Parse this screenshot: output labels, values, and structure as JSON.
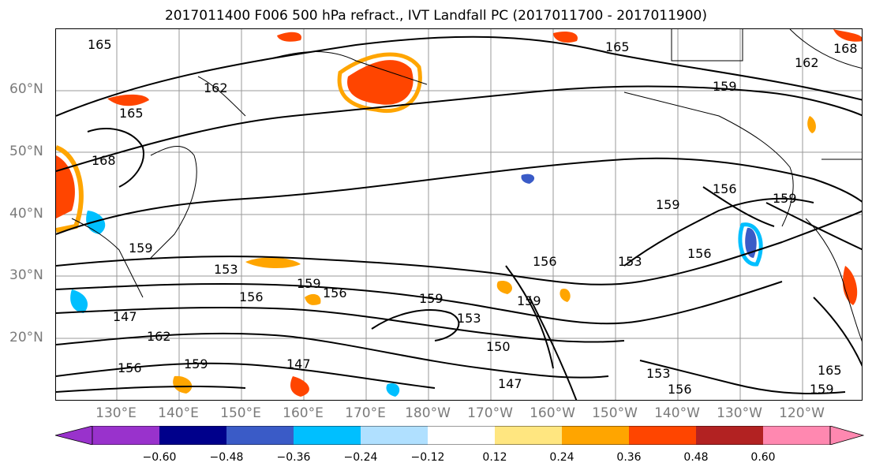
{
  "title": "2017011400 F006 500 hPa refract., IVT Landfall PC (2017011700 - 2017011900)",
  "lat_labels": [
    "60°N",
    "50°N",
    "40°N",
    "30°N",
    "20°N"
  ],
  "lon_labels": [
    "130°E",
    "140°E",
    "150°E",
    "160°E",
    "170°E",
    "180°W",
    "170°W",
    "160°W",
    "150°W",
    "140°W",
    "130°W",
    "120°W"
  ],
  "contour_labels": [
    "165",
    "162",
    "165",
    "168",
    "159",
    "153",
    "156",
    "159",
    "147",
    "162",
    "156",
    "147",
    "159",
    "156",
    "159",
    "153",
    "150",
    "147",
    "159",
    "156",
    "153",
    "156",
    "159",
    "165",
    "162",
    "159",
    "156",
    "159",
    "153",
    "156",
    "159",
    "165",
    "168"
  ],
  "colorbar": {
    "ticks": [
      "−0.60",
      "−0.48",
      "−0.36",
      "−0.24",
      "−0.12",
      "0.12",
      "0.24",
      "0.36",
      "0.48",
      "0.60"
    ],
    "colors": [
      "#9932cc",
      "#00008b",
      "#3a5bc7",
      "#00bfff",
      "#b0e0ff",
      "#ffffff",
      "#ffe680",
      "#ffa500",
      "#ff4500",
      "#b22222",
      "#ff88b0"
    ]
  },
  "map": {
    "region": "North Pacific",
    "lat_range": [
      10,
      70
    ],
    "lon_range": [
      "120°E",
      "115°W"
    ]
  }
}
